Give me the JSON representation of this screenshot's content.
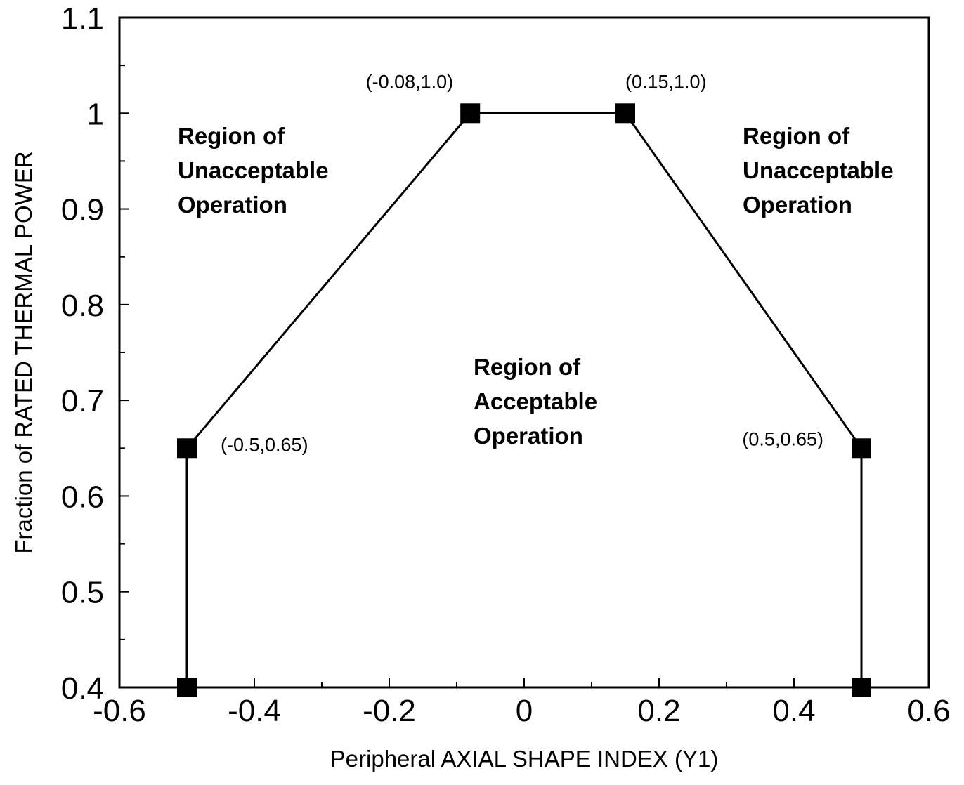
{
  "chart_data": {
    "type": "line",
    "title": "",
    "xlabel": "Peripheral AXIAL SHAPE INDEX  (Y1)",
    "ylabel": "Fraction of RATED THERMAL POWER",
    "xlim": [
      -0.6,
      0.6
    ],
    "ylim": [
      0.4,
      1.1
    ],
    "x_ticks": [
      -0.6,
      -0.4,
      -0.2,
      0,
      0.2,
      0.4,
      0.6
    ],
    "x_tick_labels": [
      "-0.6",
      "-0.4",
      "-0.2",
      "0",
      "0.2",
      "0.4",
      "0.6"
    ],
    "y_ticks": [
      0.4,
      0.5,
      0.6,
      0.7,
      0.8,
      0.9,
      1.0,
      1.1
    ],
    "y_tick_labels": [
      "0.4",
      "0.5",
      "0.6",
      "0.7",
      "0.8",
      "0.9",
      "1",
      "1.1"
    ],
    "grid": false,
    "series": [
      {
        "x": [
          -0.5,
          -0.5,
          -0.08,
          0.15,
          0.5,
          0.5
        ],
        "y": [
          0.4,
          0.65,
          1.0,
          1.0,
          0.65,
          0.4
        ],
        "marker": "square",
        "color": "#000000"
      }
    ],
    "point_labels": [
      {
        "x": -0.08,
        "y": 1.0,
        "text": "(-0.08,1.0)"
      },
      {
        "x": 0.15,
        "y": 1.0,
        "text": "(0.15,1.0)"
      },
      {
        "x": -0.5,
        "y": 0.65,
        "text": "(-0.5,0.65)"
      },
      {
        "x": 0.5,
        "y": 0.65,
        "text": "(0.5,0.65)"
      }
    ],
    "region_labels": [
      {
        "lines": [
          "Region of",
          "Unacceptable",
          "Operation"
        ],
        "position": "top-left"
      },
      {
        "lines": [
          "Region of",
          "Unacceptable",
          "Operation"
        ],
        "position": "top-right"
      },
      {
        "lines": [
          "Region of",
          "Acceptable",
          "Operation"
        ],
        "position": "center"
      }
    ]
  }
}
